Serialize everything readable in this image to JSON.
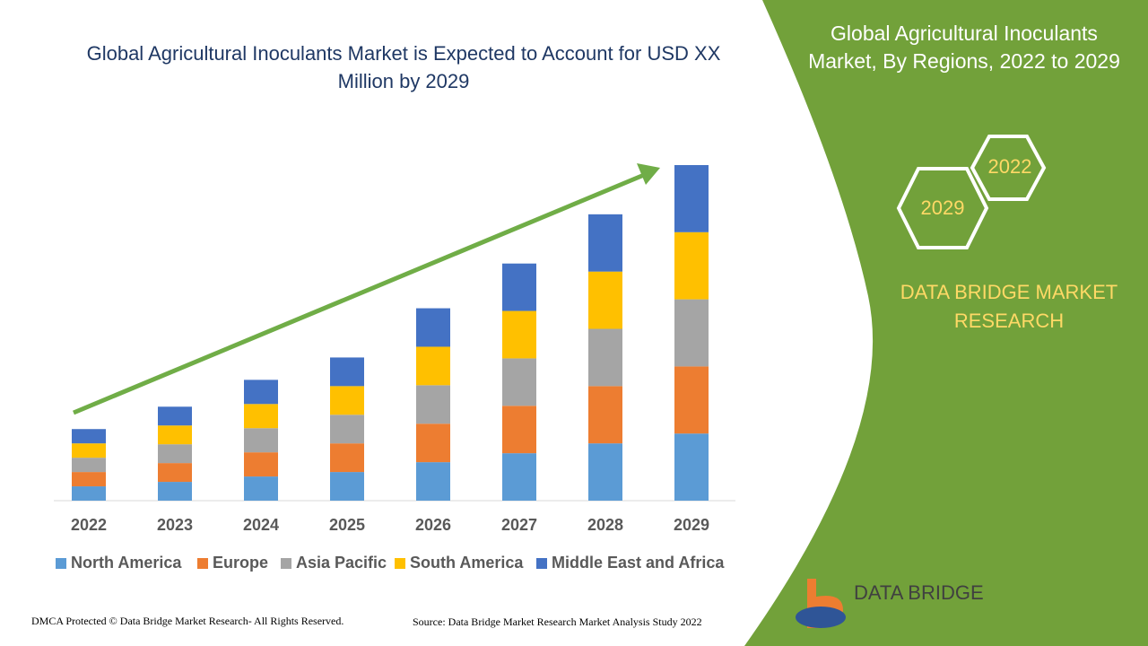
{
  "chart_data": {
    "type": "stacked_bar",
    "title": "Global Agricultural Inoculants Market is Expected to Account for USD XX Million by 2029",
    "categories": [
      "2022",
      "2023",
      "2024",
      "2025",
      "2026",
      "2027",
      "2028",
      "2029"
    ],
    "series": [
      {
        "name": "North America",
        "color": "#5b9bd5",
        "values": [
          16,
          21,
          27,
          32,
          43,
          53,
          64,
          75
        ]
      },
      {
        "name": "Europe",
        "color": "#ed7d31",
        "values": [
          16,
          21,
          27,
          32,
          43,
          53,
          64,
          75
        ]
      },
      {
        "name": "Asia Pacific",
        "color": "#a5a5a5",
        "values": [
          16,
          21,
          27,
          32,
          43,
          53,
          64,
          75
        ]
      },
      {
        "name": "South America",
        "color": "#ffc000",
        "values": [
          16,
          21,
          27,
          32,
          43,
          53,
          64,
          75
        ]
      },
      {
        "name": "Middle East and Africa",
        "color": "#4472c4",
        "values": [
          16,
          21,
          27,
          32,
          43,
          53,
          64,
          75
        ]
      }
    ],
    "legend": "bottom"
  },
  "panel": {
    "title": "Global Agricultural Inoculants Market, By Regions, 2022 to 2029",
    "hex_labels": [
      "2022",
      "2029"
    ],
    "brand": "DATA BRIDGE MARKET RESEARCH",
    "logo_text": "DATA BRIDGE"
  },
  "footer": {
    "left": "DMCA Protected © Data Bridge Market Research- All Rights Reserved.",
    "right": "Source: Data Bridge Market Research Market Analysis Study 2022"
  }
}
